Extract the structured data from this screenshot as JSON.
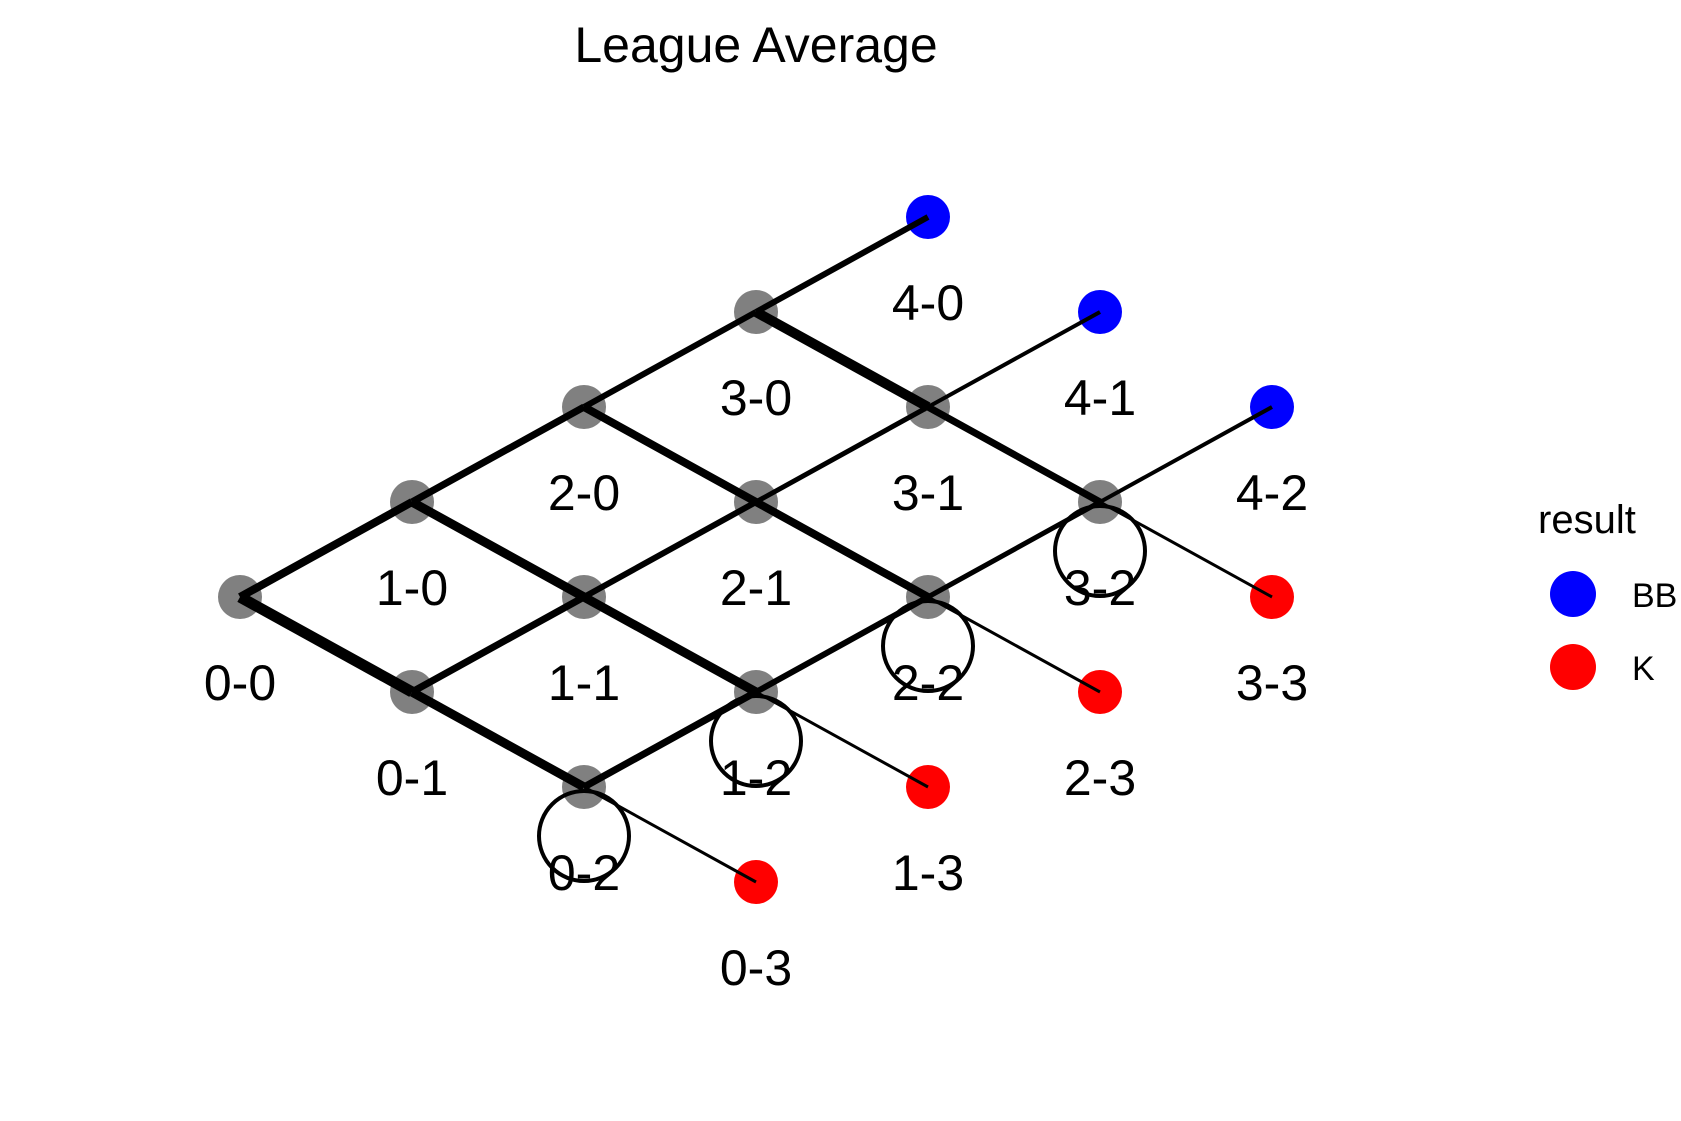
{
  "title": "League Average",
  "colors": {
    "node": "#808080",
    "BB": "#0000ff",
    "K": "#ff0000",
    "edge": "#000000",
    "text": "#000000"
  },
  "nodes": [
    {
      "balls": 0,
      "strikes": 0,
      "label": "0-0",
      "result": null
    },
    {
      "balls": 1,
      "strikes": 0,
      "label": "1-0",
      "result": null
    },
    {
      "balls": 2,
      "strikes": 0,
      "label": "2-0",
      "result": null
    },
    {
      "balls": 3,
      "strikes": 0,
      "label": "3-0",
      "result": null
    },
    {
      "balls": 4,
      "strikes": 0,
      "label": "4-0",
      "result": "BB"
    },
    {
      "balls": 0,
      "strikes": 1,
      "label": "0-1",
      "result": null
    },
    {
      "balls": 1,
      "strikes": 1,
      "label": "1-1",
      "result": null
    },
    {
      "balls": 2,
      "strikes": 1,
      "label": "2-1",
      "result": null
    },
    {
      "balls": 3,
      "strikes": 1,
      "label": "3-1",
      "result": null
    },
    {
      "balls": 4,
      "strikes": 1,
      "label": "4-1",
      "result": "BB"
    },
    {
      "balls": 0,
      "strikes": 2,
      "label": "0-2",
      "result": null
    },
    {
      "balls": 1,
      "strikes": 2,
      "label": "1-2",
      "result": null
    },
    {
      "balls": 2,
      "strikes": 2,
      "label": "2-2",
      "result": null
    },
    {
      "balls": 3,
      "strikes": 2,
      "label": "3-2",
      "result": null
    },
    {
      "balls": 4,
      "strikes": 2,
      "label": "4-2",
      "result": "BB"
    },
    {
      "balls": 0,
      "strikes": 3,
      "label": "0-3",
      "result": "K"
    },
    {
      "balls": 1,
      "strikes": 3,
      "label": "1-3",
      "result": "K"
    },
    {
      "balls": 2,
      "strikes": 3,
      "label": "2-3",
      "result": "K"
    },
    {
      "balls": 3,
      "strikes": 3,
      "label": "3-3",
      "result": "K"
    }
  ],
  "edges": [
    {
      "from": "0-0",
      "to": "1-0",
      "weight": 8
    },
    {
      "from": "1-0",
      "to": "2-0",
      "weight": 7
    },
    {
      "from": "2-0",
      "to": "3-0",
      "weight": 6
    },
    {
      "from": "3-0",
      "to": "4-0",
      "weight": 6
    },
    {
      "from": "0-0",
      "to": "0-1",
      "weight": 11
    },
    {
      "from": "1-0",
      "to": "1-1",
      "weight": 9
    },
    {
      "from": "2-0",
      "to": "2-1",
      "weight": 8
    },
    {
      "from": "3-0",
      "to": "3-1",
      "weight": 10
    },
    {
      "from": "0-1",
      "to": "1-1",
      "weight": 7
    },
    {
      "from": "1-1",
      "to": "2-1",
      "weight": 6
    },
    {
      "from": "2-1",
      "to": "3-1",
      "weight": 5
    },
    {
      "from": "3-1",
      "to": "4-1",
      "weight": 4
    },
    {
      "from": "0-1",
      "to": "0-2",
      "weight": 9
    },
    {
      "from": "1-1",
      "to": "1-2",
      "weight": 9
    },
    {
      "from": "2-1",
      "to": "2-2",
      "weight": 8
    },
    {
      "from": "3-1",
      "to": "3-2",
      "weight": 7
    },
    {
      "from": "0-2",
      "to": "1-2",
      "weight": 7
    },
    {
      "from": "1-2",
      "to": "2-2",
      "weight": 6
    },
    {
      "from": "2-2",
      "to": "3-2",
      "weight": 5
    },
    {
      "from": "3-2",
      "to": "4-2",
      "weight": 4
    },
    {
      "from": "0-2",
      "to": "0-3",
      "weight": 3
    },
    {
      "from": "1-2",
      "to": "1-3",
      "weight": 3
    },
    {
      "from": "2-2",
      "to": "2-3",
      "weight": 3
    },
    {
      "from": "3-2",
      "to": "3-3",
      "weight": 3
    }
  ],
  "loops": [
    "0-2",
    "1-2",
    "2-2",
    "3-2"
  ],
  "legend": {
    "title": "result",
    "items": [
      {
        "key": "BB",
        "label": "BB"
      },
      {
        "key": "K",
        "label": "K"
      }
    ]
  }
}
